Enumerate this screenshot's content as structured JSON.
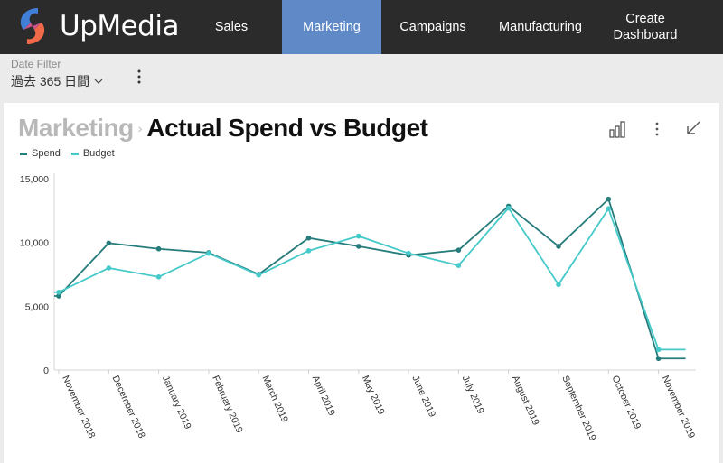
{
  "app": {
    "brand": "UpMedia"
  },
  "nav": {
    "items": [
      {
        "label": "Sales",
        "active": false
      },
      {
        "label": "Marketing",
        "active": true
      },
      {
        "label": "Campaigns",
        "active": false
      },
      {
        "label": "Manufacturing",
        "active": false
      },
      {
        "label": "Create Dashboard",
        "active": false
      }
    ]
  },
  "filter": {
    "label": "Date Filter",
    "value": "過去 365 日間"
  },
  "card": {
    "breadcrumb": "Marketing",
    "title": "Actual Spend vs Budget",
    "icons": [
      "bar-chart-icon",
      "more-vertical-icon",
      "collapse-arrow-icon"
    ]
  },
  "colors": {
    "spend": "#267b7b",
    "budget": "#45c9c9",
    "nav_bg": "#2b2b2b",
    "nav_active": "#5f8ac7"
  },
  "chart_data": {
    "type": "line",
    "categories": [
      "November 2018",
      "December 2018",
      "January 2019",
      "February 2019",
      "March 2019",
      "April 2019",
      "May 2019",
      "June 2019",
      "July 2019",
      "August 2019",
      "September 2019",
      "October 2019",
      "November 2019"
    ],
    "series": [
      {
        "name": "Spend",
        "values": [
          5800,
          9950,
          9500,
          9200,
          7500,
          10350,
          9700,
          9000,
          9400,
          12850,
          9700,
          13400,
          900
        ]
      },
      {
        "name": "Budget",
        "values": [
          6100,
          8000,
          7300,
          9150,
          7450,
          9350,
          10500,
          9150,
          8200,
          12700,
          6700,
          12650,
          1600
        ]
      }
    ],
    "yticks": [
      "0",
      "5,000",
      "10,000",
      "15,000"
    ],
    "ylim": [
      0,
      15000
    ],
    "legend": "top-left"
  }
}
